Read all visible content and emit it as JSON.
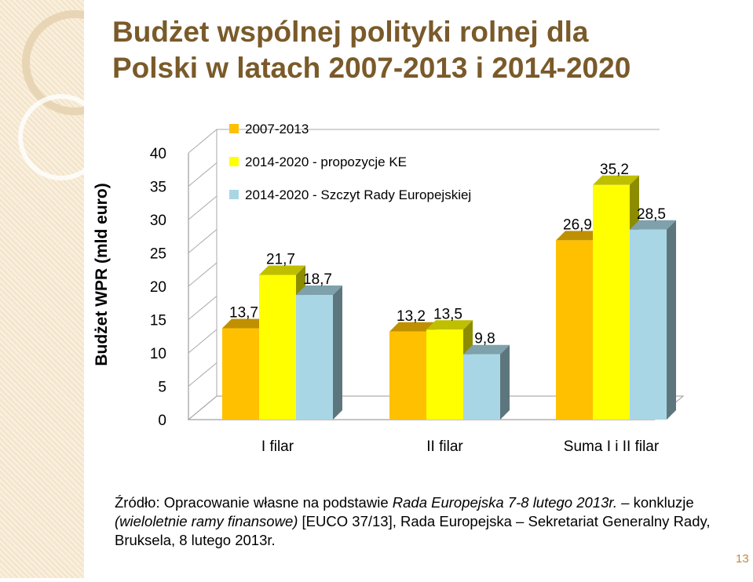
{
  "title_line1": "Budżet wspólnej polityki rolnej dla",
  "title_line2": "Polski w latach 2007-2013 i 2014-2020",
  "chart_data": {
    "type": "bar",
    "ylabel": "Budżet WPR (mld euro)",
    "ylim": [
      0,
      40
    ],
    "yticks": [
      "0",
      "5",
      "10",
      "15",
      "20",
      "25",
      "30",
      "35",
      "40"
    ],
    "categories": [
      "I filar",
      "II filar",
      "Suma I i II filar"
    ],
    "series": [
      {
        "name": "2007-2013",
        "values": [
          13.7,
          13.2,
          26.9
        ],
        "labels": [
          "13,7",
          "13,2",
          "26,9"
        ],
        "color": "#ffc000"
      },
      {
        "name": "2014-2020 - propozycje KE",
        "values": [
          21.7,
          13.5,
          35.2
        ],
        "labels": [
          "21,7",
          "13,5",
          "35,2"
        ],
        "color": "#ffff00"
      },
      {
        "name": "2014-2020 - Szczyt Rady Europejskiej",
        "values": [
          18.7,
          9.8,
          28.5
        ],
        "labels": [
          "18,7",
          "9,8",
          "28,5"
        ],
        "color": "#a9d6e5"
      }
    ],
    "legend_position": "top-left",
    "grid": false
  },
  "source": {
    "part1": "Źródło: Opracowanie własne na podstawie ",
    "part2": "Rada Europejska 7-8 lutego 2013r.",
    "part3": " – konkluzje ",
    "part4": "(wieloletnie ramy finansowe)",
    "part5": " [EUCO 37/13], Rada Europejska – Sekretariat Generalny Rady, Bruksela, 8 lutego 2013r."
  },
  "page_number": "13"
}
